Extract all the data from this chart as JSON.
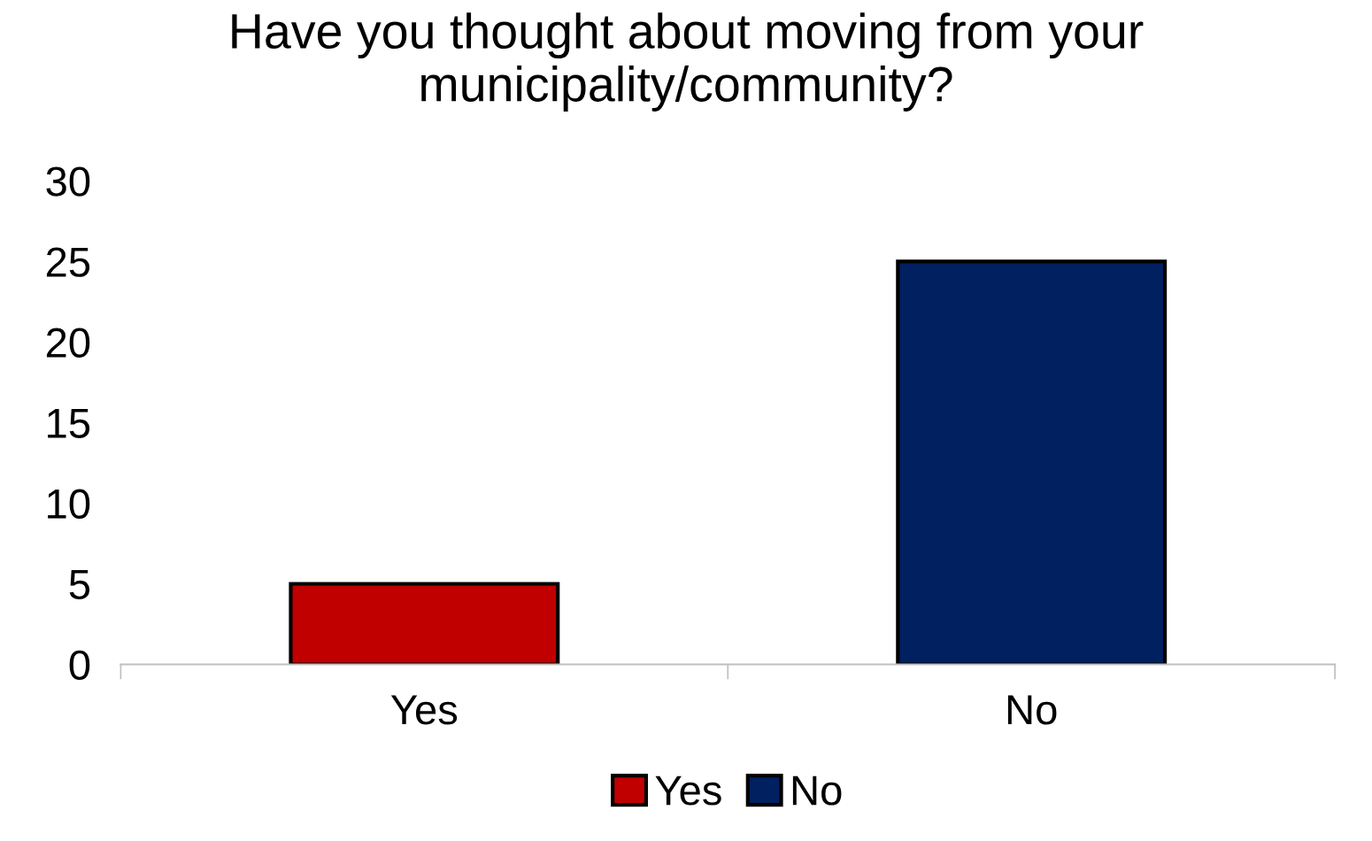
{
  "chart_data": {
    "type": "bar",
    "title": "Have you thought about moving from your municipality/community?",
    "categories": [
      "Yes",
      "No"
    ],
    "series": [
      {
        "name": "Yes",
        "color": "#c00000",
        "values": [
          5,
          null
        ]
      },
      {
        "name": "No",
        "color": "#002060",
        "values": [
          null,
          25
        ]
      }
    ],
    "ylim": [
      0,
      30
    ],
    "yticks": [
      0,
      5,
      10,
      15,
      20,
      25,
      30
    ],
    "grid": false,
    "legend": "bottom"
  }
}
